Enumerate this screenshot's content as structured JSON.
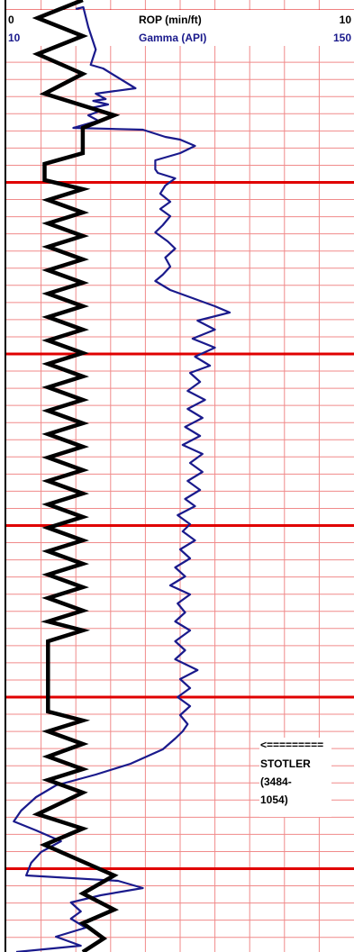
{
  "chart_data": {
    "type": "line",
    "header": {
      "rop_min": "0",
      "rop_label": "ROP (min/ft)",
      "rop_max": "10",
      "gamma_min": "10",
      "gamma_label": "Gamma (API)",
      "gamma_max": "150"
    },
    "colors": {
      "rop": "#000000",
      "gamma": "#1a1a8c",
      "grid_minor": "#f08a8a",
      "grid_major": "#e00000"
    },
    "grid": true,
    "xlim_rop": [
      0,
      10
    ],
    "xlim_gamma": [
      10,
      150
    ],
    "series": [
      {
        "name": "ROP (min/ft)",
        "axis": "rop",
        "points": [
          [
            2.2,
            0
          ],
          [
            0.9,
            20
          ],
          [
            2.2,
            40
          ],
          [
            0.9,
            60
          ],
          [
            2.2,
            82
          ],
          [
            1.1,
            104
          ],
          [
            3.1,
            128
          ],
          [
            2.2,
            142
          ],
          [
            2.2,
            170
          ],
          [
            1.1,
            182
          ],
          [
            1.1,
            200
          ],
          [
            2.2,
            210
          ],
          [
            1.2,
            222
          ],
          [
            2.2,
            236
          ],
          [
            1.2,
            248
          ],
          [
            2.2,
            262
          ],
          [
            1.2,
            274
          ],
          [
            2.2,
            288
          ],
          [
            1.2,
            300
          ],
          [
            2.2,
            314
          ],
          [
            1.2,
            326
          ],
          [
            2.2,
            340
          ],
          [
            1.2,
            352
          ],
          [
            2.2,
            366
          ],
          [
            1.2,
            378
          ],
          [
            2.2,
            392
          ],
          [
            1.2,
            404
          ],
          [
            2.2,
            418
          ],
          [
            1.2,
            430
          ],
          [
            2.2,
            444
          ],
          [
            1.2,
            456
          ],
          [
            2.2,
            470
          ],
          [
            1.2,
            482
          ],
          [
            2.2,
            496
          ],
          [
            1.2,
            508
          ],
          [
            2.2,
            522
          ],
          [
            1.2,
            534
          ],
          [
            2.2,
            548
          ],
          [
            1.2,
            560
          ],
          [
            2.2,
            574
          ],
          [
            1.2,
            586
          ],
          [
            2.2,
            600
          ],
          [
            1.2,
            612
          ],
          [
            2.2,
            626
          ],
          [
            1.2,
            638
          ],
          [
            2.2,
            652
          ],
          [
            1.2,
            664
          ],
          [
            2.2,
            678
          ],
          [
            1.2,
            690
          ],
          [
            2.2,
            700
          ],
          [
            1.2,
            712
          ],
          [
            1.2,
            790
          ],
          [
            2.2,
            800
          ],
          [
            1.2,
            812
          ],
          [
            2.2,
            826
          ],
          [
            1.2,
            840
          ],
          [
            2.2,
            854
          ],
          [
            1.2,
            866
          ],
          [
            2.2,
            880
          ],
          [
            0.9,
            904
          ],
          [
            2.2,
            920
          ],
          [
            1.1,
            938
          ],
          [
            3.1,
            972
          ],
          [
            2.2,
            992
          ],
          [
            3.1,
            1010
          ],
          [
            2.2,
            1025
          ],
          [
            2.8,
            1042
          ],
          [
            2.2,
            1057
          ]
        ]
      },
      {
        "name": "Gamma (API)",
        "axis": "gamma",
        "points": [
          [
            38,
            10
          ],
          [
            41,
            8
          ],
          [
            43,
            30
          ],
          [
            46,
            55
          ],
          [
            44,
            72
          ],
          [
            49,
            76
          ],
          [
            62,
            98
          ],
          [
            46,
            104
          ],
          [
            50,
            110
          ],
          [
            45,
            112
          ],
          [
            51,
            116
          ],
          [
            44,
            120
          ],
          [
            47,
            124
          ],
          [
            43,
            128
          ],
          [
            47,
            134
          ],
          [
            37,
            142
          ],
          [
            65,
            144
          ],
          [
            74,
            152
          ],
          [
            80,
            155
          ],
          [
            86,
            162
          ],
          [
            80,
            170
          ],
          [
            70,
            178
          ],
          [
            70,
            188
          ],
          [
            71,
            192
          ],
          [
            78,
            198
          ],
          [
            74,
            206
          ],
          [
            72,
            215
          ],
          [
            76,
            224
          ],
          [
            72,
            232
          ],
          [
            76,
            240
          ],
          [
            73,
            250
          ],
          [
            70,
            258
          ],
          [
            75,
            268
          ],
          [
            78,
            276
          ],
          [
            74,
            286
          ],
          [
            76,
            296
          ],
          [
            73,
            305
          ],
          [
            70,
            312
          ],
          [
            76,
            322
          ],
          [
            94,
            340
          ],
          [
            100,
            347
          ],
          [
            87,
            356
          ],
          [
            94,
            366
          ],
          [
            85,
            376
          ],
          [
            94,
            386
          ],
          [
            86,
            396
          ],
          [
            92,
            406
          ],
          [
            84,
            414
          ],
          [
            88,
            424
          ],
          [
            83,
            434
          ],
          [
            90,
            444
          ],
          [
            83,
            454
          ],
          [
            89,
            464
          ],
          [
            82,
            474
          ],
          [
            88,
            484
          ],
          [
            81,
            494
          ],
          [
            89,
            504
          ],
          [
            84,
            514
          ],
          [
            89,
            524
          ],
          [
            83,
            534
          ],
          [
            88,
            544
          ],
          [
            82,
            554
          ],
          [
            86,
            562
          ],
          [
            79,
            572
          ],
          [
            84,
            582
          ],
          [
            81,
            590
          ],
          [
            86,
            600
          ],
          [
            80,
            610
          ],
          [
            84,
            620
          ],
          [
            78,
            630
          ],
          [
            82,
            640
          ],
          [
            76,
            650
          ],
          [
            84,
            660
          ],
          [
            79,
            670
          ],
          [
            82,
            680
          ],
          [
            78,
            690
          ],
          [
            84,
            700
          ],
          [
            78,
            712
          ],
          [
            82,
            722
          ],
          [
            78,
            732
          ],
          [
            87,
            744
          ],
          [
            80,
            754
          ],
          [
            84,
            764
          ],
          [
            79,
            774
          ],
          [
            84,
            784
          ],
          [
            80,
            794
          ],
          [
            83,
            804
          ],
          [
            81,
            812
          ],
          [
            78,
            820
          ],
          [
            73,
            832
          ],
          [
            60,
            848
          ],
          [
            46,
            860
          ],
          [
            30,
            872
          ],
          [
            22,
            885
          ],
          [
            16,
            900
          ],
          [
            13,
            912
          ],
          [
            22,
            922
          ],
          [
            32,
            934
          ],
          [
            24,
            946
          ],
          [
            20,
            958
          ],
          [
            18,
            972
          ],
          [
            55,
            978
          ],
          [
            65,
            986
          ],
          [
            48,
            994
          ],
          [
            36,
            1002
          ],
          [
            40,
            1012
          ],
          [
            36,
            1020
          ],
          [
            42,
            1030
          ],
          [
            30,
            1040
          ],
          [
            40,
            1050
          ],
          [
            14,
            1057
          ]
        ]
      }
    ],
    "annotations": {
      "arrow": "<=========",
      "line1": "STOTLER",
      "line2": "(3484-",
      "line3": "1054)"
    }
  }
}
